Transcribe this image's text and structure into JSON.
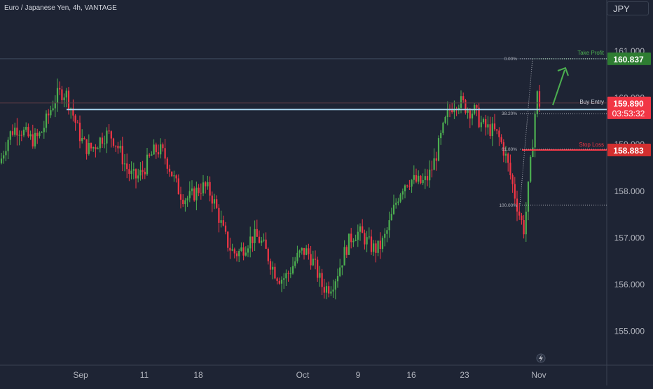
{
  "header": {
    "symbol_title": "Euro / Japanese Yen, 4h, VANTAGE",
    "currency_button": "JPY"
  },
  "chart_data": {
    "type": "candlestick",
    "title": "Euro / Japanese Yen, 4h, VANTAGE",
    "ylim": [
      154.4,
      161.4
    ],
    "y_ticks": [
      155.0,
      156.0,
      157.0,
      158.0,
      159.0,
      160.0,
      161.0
    ],
    "y_tick_labels": [
      "155.000",
      "156.000",
      "157.000",
      "158.000",
      "159.000",
      "160.000",
      "161.000"
    ],
    "x_ticks": [
      "Sep",
      "11",
      "18",
      "Oct",
      "9",
      "16",
      "23",
      "Nov"
    ],
    "colors": {
      "up": "#4caf50",
      "down": "#f23645",
      "bg": "#1e2434",
      "resistance": "#a9d7f0",
      "take_profit": "#4caf50",
      "stop_loss": "#f23645"
    },
    "key_points": [
      {
        "label": "start",
        "value": 158.6
      },
      {
        "label": "late-aug-high",
        "value": 159.75
      },
      {
        "label": "early-oct-low",
        "value": 155.9
      },
      {
        "label": "oct-24-high",
        "value": 159.85
      },
      {
        "label": "oct-31-low",
        "value": 157.75
      },
      {
        "label": "recent-high",
        "value": 160.4
      },
      {
        "label": "last",
        "value": 159.89
      }
    ],
    "levels": [
      {
        "name": "Take Profit",
        "value": 160.837,
        "label": "160.837"
      },
      {
        "name": "Buy Entry",
        "value": 159.89,
        "label": "159.890",
        "countdown": "03:53:32"
      },
      {
        "name": "Stop Loss",
        "value": 158.883,
        "label": "158.883"
      }
    ],
    "fibonacci": [
      {
        "label": "0.00%",
        "value": 160.837
      },
      {
        "label": "38.20%",
        "value": 159.66
      },
      {
        "label": "61.80%",
        "value": 158.9
      },
      {
        "label": "100.00%",
        "value": 157.7
      }
    ],
    "resistance_level": 159.75,
    "flag_icon": "lightning-icon"
  }
}
